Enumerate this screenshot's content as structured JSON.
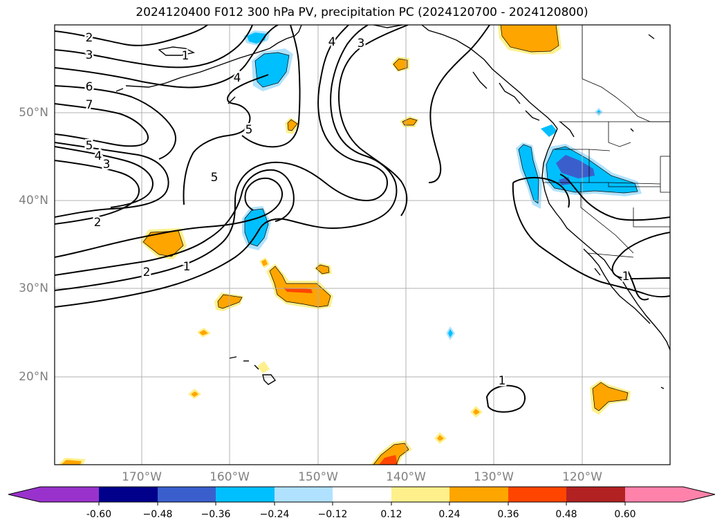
{
  "title": "2024120400 F012 300 hPa PV, precipitation PC (2024120700 - 2024120800)",
  "lat_labels": [
    "50°N",
    "40°N",
    "30°N",
    "20°N"
  ],
  "lon_labels": [
    "170°W",
    "160°W",
    "150°W",
    "140°W",
    "130°W",
    "120°W"
  ],
  "contour_labels": [
    "2",
    "3",
    "6",
    "7",
    "5",
    "4",
    "3",
    "2",
    "1",
    "4",
    "5",
    "5",
    "4",
    "3",
    "2",
    "1",
    "1",
    "1"
  ],
  "colorbar": {
    "ticks": [
      "-0.60",
      "−0.48",
      "−0.36",
      "−0.24",
      "−0.12",
      "0.12",
      "0.24",
      "0.36",
      "0.48",
      "0.60"
    ],
    "colors": [
      "#9932cc",
      "#00008b",
      "#3a5fcd",
      "#00bfff",
      "#b0e2ff",
      "#ffffff",
      "#fff08c",
      "#ffa500",
      "#ff4500",
      "#b22222",
      "#ff82ab"
    ]
  }
}
